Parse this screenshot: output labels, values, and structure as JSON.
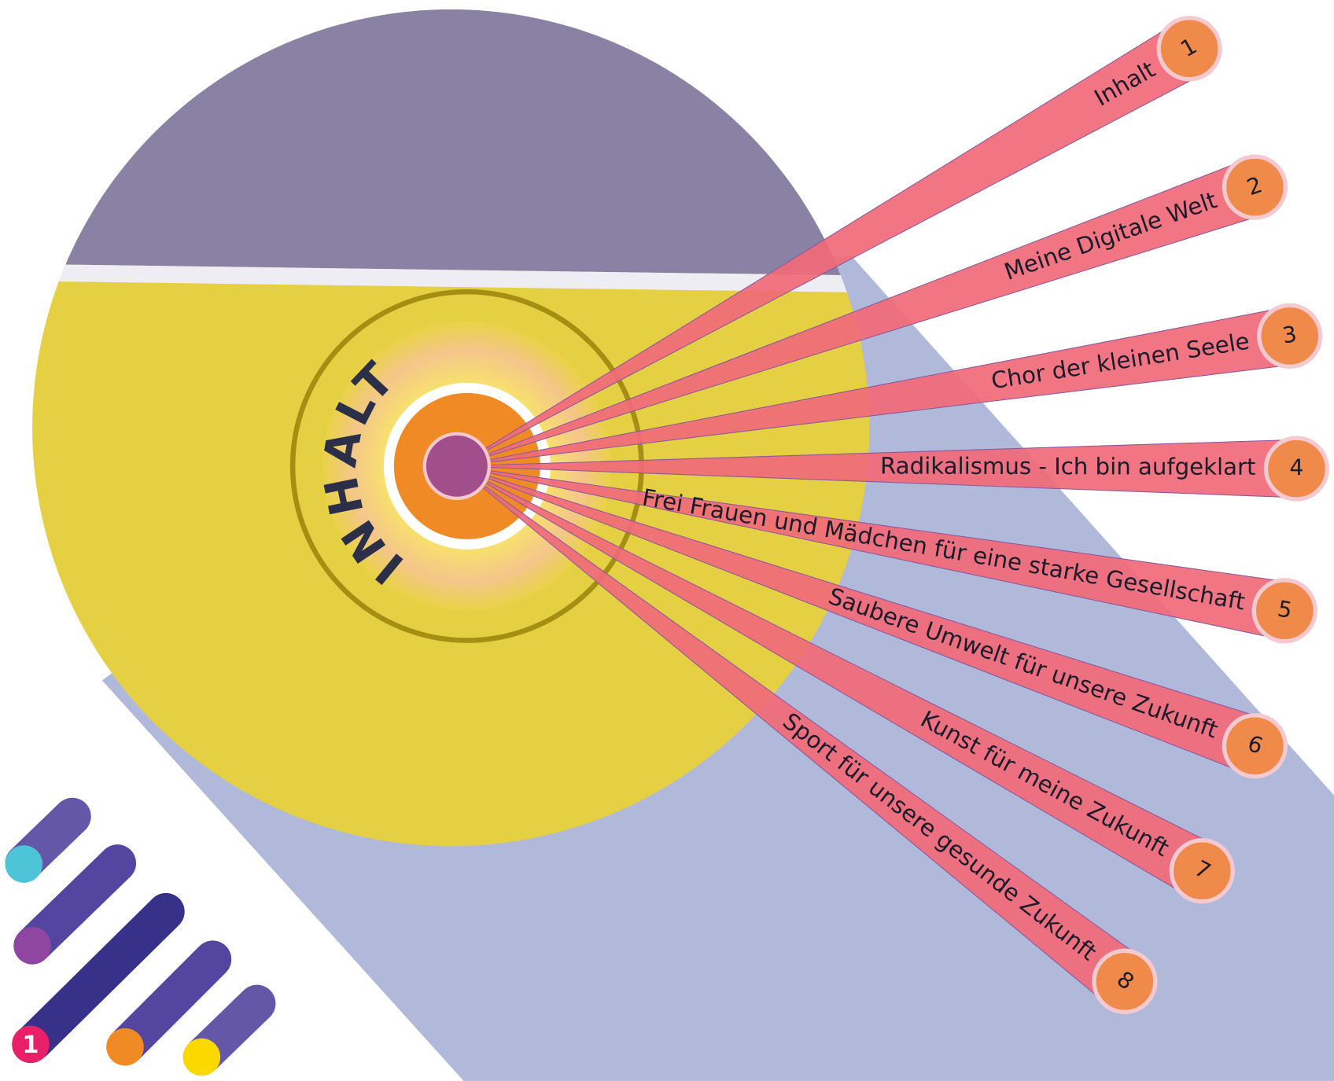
{
  "title": "INHALT",
  "items": [
    {
      "number": "1",
      "label": "Inhalt"
    },
    {
      "number": "2",
      "label": "Meine Digitale Welt"
    },
    {
      "number": "3",
      "label": "Chor der kleinen Seele"
    },
    {
      "number": "4",
      "label": "Radikalismus - Ich bin aufgeklart"
    },
    {
      "number": "5",
      "label": "Frei Frauen und Mädchen für eine starke Gesellschaft"
    },
    {
      "number": "6",
      "label": "Saubere Umwelt für unsere Zukunft"
    },
    {
      "number": "7",
      "label": "Kunst für meine Zukunft"
    },
    {
      "number": "8",
      "label": "Sport für unsere gesunde Zukunft"
    }
  ],
  "logo": {
    "badge": "1"
  }
}
